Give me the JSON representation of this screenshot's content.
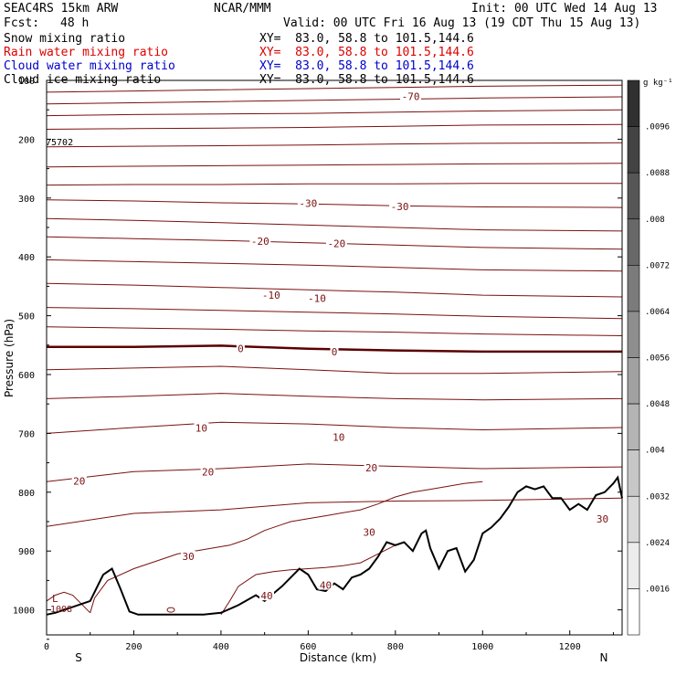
{
  "header": {
    "model": "SEAC4RS 15km ARW",
    "center": "NCAR/MMM",
    "init": "Init: 00 UTC Wed 14 Aug 13",
    "fcst_label": "Fcst:",
    "fcst_value": "48 h",
    "valid": "Valid: 00 UTC Fri 16 Aug 13 (19 CDT Thu 15 Aug 13)"
  },
  "fields": [
    {
      "name": "Snow mixing ratio",
      "xy": "XY=  83.0, 58.8 to 101.5,144.6",
      "color": "#000000"
    },
    {
      "name": "Rain water mixing ratio",
      "xy": "XY=  83.0, 58.8 to 101.5,144.6",
      "color": "#dd0000"
    },
    {
      "name": "Cloud water mixing ratio",
      "xy": "XY=  83.0, 58.8 to 101.5,144.6",
      "color": "#0000cc"
    },
    {
      "name": "Cloud ice mixing ratio",
      "xy": "XY=  83.0, 58.8 to 101.5,144.6",
      "color": "#000000"
    }
  ],
  "chart_data": {
    "type": "line",
    "xlabel": "Distance (km)",
    "ylabel": "Pressure (hPa)",
    "xlim": [
      0,
      1320
    ],
    "ylim": [
      1050,
      100
    ],
    "x_ticks": [
      0,
      200,
      400,
      600,
      800,
      1000,
      1200
    ],
    "y_ticks": [
      100,
      200,
      300,
      400,
      500,
      600,
      700,
      800,
      900,
      1000
    ],
    "x_end_labels": {
      "left": "S",
      "right": "N"
    },
    "station_label": "75702",
    "low_label": "L",
    "low_value": "1008",
    "colorbar": {
      "unit": "g kg⁻¹",
      "ticks": [
        ".0016",
        ".0024",
        ".0032",
        ".004",
        ".0048",
        ".0056",
        ".0064",
        ".0072",
        ".008",
        ".0088",
        ".0096"
      ]
    },
    "contour_color": "#7a1010",
    "zero_contour_color": "#5a0000",
    "isotherm_labels": [
      {
        "text": "-70",
        "x": 835,
        "p": 127
      },
      {
        "text": "-30",
        "x": 600,
        "p": 309
      },
      {
        "text": "-30",
        "x": 810,
        "p": 314
      },
      {
        "text": "-20",
        "x": 490,
        "p": 373
      },
      {
        "text": "-20",
        "x": 665,
        "p": 377
      },
      {
        "text": "-10",
        "x": 515,
        "p": 465
      },
      {
        "text": "-10",
        "x": 620,
        "p": 470
      },
      {
        "text": "0",
        "x": 445,
        "p": 556
      },
      {
        "text": "0",
        "x": 660,
        "p": 561
      },
      {
        "text": "10",
        "x": 355,
        "p": 691
      },
      {
        "text": "10",
        "x": 670,
        "p": 706
      },
      {
        "text": "20",
        "x": 75,
        "p": 781
      },
      {
        "text": "20",
        "x": 370,
        "p": 765
      },
      {
        "text": "20",
        "x": 745,
        "p": 758
      },
      {
        "text": "30",
        "x": 740,
        "p": 868
      },
      {
        "text": "30",
        "x": 325,
        "p": 909
      },
      {
        "text": "30",
        "x": 1275,
        "p": 845
      },
      {
        "text": "40",
        "x": 505,
        "p": 976
      },
      {
        "text": "40",
        "x": 640,
        "p": 958
      }
    ],
    "isotherms": [
      {
        "p": [
          120,
          118,
          116,
          114,
          112,
          110,
          108
        ]
      },
      {
        "p": [
          140,
          138,
          136,
          134,
          132,
          130,
          128
        ]
      },
      {
        "p": [
          160,
          158,
          157,
          156,
          154,
          152,
          150
        ]
      },
      {
        "p": [
          183,
          182,
          181,
          180,
          178,
          176,
          175
        ]
      },
      {
        "p": [
          213,
          212,
          211,
          210,
          208,
          207,
          206
        ]
      },
      {
        "p": [
          247,
          246,
          245,
          244,
          243,
          242,
          241
        ]
      },
      {
        "p": [
          278,
          277,
          277,
          276,
          276,
          275,
          275
        ]
      },
      {
        "p": [
          303,
          305,
          308,
          310,
          313,
          315,
          316
        ]
      },
      {
        "p": [
          335,
          338,
          342,
          346,
          350,
          354,
          356
        ]
      },
      {
        "p": [
          366,
          369,
          372,
          376,
          380,
          384,
          387
        ]
      },
      {
        "p": [
          405,
          408,
          411,
          414,
          418,
          422,
          424
        ]
      },
      {
        "p": [
          445,
          448,
          452,
          456,
          460,
          465,
          468
        ]
      },
      {
        "p": [
          486,
          488,
          491,
          494,
          497,
          501,
          505
        ]
      },
      {
        "p": [
          519,
          521,
          523,
          526,
          528,
          531,
          534
        ]
      },
      {
        "p": [
          553,
          553,
          551,
          556,
          559,
          561,
          561
        ]
      },
      {
        "p": [
          592,
          589,
          586,
          592,
          598,
          598,
          595
        ]
      },
      {
        "p": [
          641,
          637,
          632,
          637,
          641,
          643,
          641
        ]
      },
      {
        "p": [
          700,
          690,
          681,
          684,
          690,
          694,
          690
        ]
      },
      {
        "p": [
          782,
          765,
          760,
          752,
          756,
          760,
          757
        ]
      },
      {
        "p": [
          858,
          836,
          830,
          818,
          815,
          814,
          810
        ]
      }
    ],
    "contour_x": [
      0,
      200,
      400,
      600,
      800,
      1000,
      1320
    ],
    "terrain": {
      "x": [
        0,
        20,
        60,
        100,
        130,
        150,
        170,
        190,
        210,
        240,
        280,
        320,
        360,
        400,
        440,
        480,
        500,
        540,
        580,
        600,
        620,
        640,
        660,
        680,
        700,
        720,
        740,
        760,
        780,
        800,
        820,
        840,
        860,
        870,
        880,
        900,
        920,
        940,
        960,
        980,
        1000,
        1020,
        1040,
        1060,
        1080,
        1100,
        1120,
        1140,
        1160,
        1180,
        1200,
        1220,
        1240,
        1260,
        1280,
        1300,
        1310,
        1320
      ],
      "p": [
        1008,
        1005,
        995,
        985,
        940,
        930,
        965,
        1003,
        1008,
        1008,
        1008,
        1008,
        1008,
        1005,
        992,
        975,
        985,
        960,
        930,
        940,
        965,
        968,
        955,
        965,
        945,
        940,
        930,
        910,
        885,
        890,
        885,
        900,
        870,
        865,
        895,
        930,
        900,
        895,
        935,
        915,
        870,
        860,
        845,
        825,
        800,
        790,
        795,
        790,
        810,
        810,
        830,
        820,
        830,
        805,
        800,
        785,
        775,
        810
      ]
    },
    "inner_contour_30": {
      "x": [
        100,
        110,
        140,
        200,
        260,
        300,
        340,
        380,
        420,
        460,
        500,
        540,
        560,
        600,
        640,
        680,
        720,
        760,
        800,
        840,
        880,
        920,
        960,
        1000
      ],
      "p": [
        1005,
        980,
        950,
        930,
        915,
        905,
        900,
        895,
        890,
        880,
        865,
        855,
        850,
        845,
        840,
        835,
        830,
        820,
        808,
        800,
        795,
        790,
        785,
        782
      ]
    },
    "inner_contour_40": {
      "x": [
        400,
        420,
        440,
        480,
        520,
        560,
        600,
        640,
        680,
        720,
        760,
        800
      ],
      "p": [
        1008,
        985,
        960,
        940,
        935,
        932,
        930,
        928,
        925,
        920,
        905,
        890
      ]
    },
    "inner_contour_40b": {
      "x": [
        0,
        20,
        40,
        60,
        80,
        100
      ],
      "p": [
        985,
        975,
        970,
        975,
        990,
        1005
      ]
    }
  }
}
